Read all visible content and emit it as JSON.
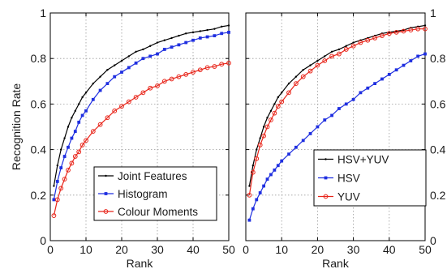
{
  "chart_data": [
    {
      "type": "line",
      "title": "",
      "xlabel": "Rank",
      "ylabel": "Recognition Rate",
      "xlim": [
        0,
        50
      ],
      "ylim": [
        0,
        1
      ],
      "xticks": [
        0,
        10,
        20,
        30,
        40,
        50
      ],
      "yticks": [
        0,
        0.2,
        0.4,
        0.6,
        0.8,
        1
      ],
      "xtick_labels": [
        "0",
        "10",
        "20",
        "30",
        "40",
        "50"
      ],
      "ytick_labels": [
        "0",
        "0.2",
        "0.4",
        "0.6",
        "0.8",
        "1"
      ],
      "ytick_side": "left",
      "grid": true,
      "legend": "bottom-right",
      "x": [
        1,
        2,
        3,
        4,
        5,
        6,
        7,
        8,
        9,
        10,
        12,
        14,
        16,
        18,
        20,
        22,
        24,
        26,
        28,
        30,
        32,
        34,
        36,
        38,
        40,
        42,
        44,
        46,
        48,
        50
      ],
      "series": [
        {
          "name": "Joint Features",
          "color": "#000000",
          "marker": "dot",
          "values": [
            0.24,
            0.33,
            0.4,
            0.45,
            0.5,
            0.54,
            0.57,
            0.6,
            0.63,
            0.65,
            0.69,
            0.72,
            0.75,
            0.77,
            0.79,
            0.81,
            0.83,
            0.84,
            0.855,
            0.87,
            0.88,
            0.89,
            0.9,
            0.91,
            0.915,
            0.92,
            0.925,
            0.93,
            0.94,
            0.945
          ]
        },
        {
          "name": "Histogram",
          "color": "#1f2fe0",
          "marker": "square",
          "values": [
            0.18,
            0.26,
            0.32,
            0.37,
            0.41,
            0.45,
            0.48,
            0.52,
            0.55,
            0.57,
            0.62,
            0.66,
            0.69,
            0.72,
            0.74,
            0.76,
            0.78,
            0.8,
            0.81,
            0.82,
            0.84,
            0.85,
            0.86,
            0.87,
            0.88,
            0.89,
            0.895,
            0.9,
            0.91,
            0.915
          ]
        },
        {
          "name": "Colour Moments",
          "color": "#e8251a",
          "marker": "circle",
          "values": [
            0.11,
            0.18,
            0.23,
            0.27,
            0.31,
            0.34,
            0.37,
            0.39,
            0.42,
            0.44,
            0.48,
            0.51,
            0.54,
            0.57,
            0.59,
            0.61,
            0.63,
            0.65,
            0.67,
            0.68,
            0.7,
            0.71,
            0.72,
            0.73,
            0.74,
            0.75,
            0.76,
            0.765,
            0.775,
            0.78
          ]
        }
      ]
    },
    {
      "type": "line",
      "title": "",
      "xlabel": "Rank",
      "ylabel": "",
      "xlim": [
        0,
        50
      ],
      "ylim": [
        0,
        1
      ],
      "xticks": [
        0,
        10,
        20,
        30,
        40,
        50
      ],
      "yticks": [
        0,
        0.2,
        0.4,
        0.6,
        0.8,
        1
      ],
      "xtick_labels": [
        "0",
        "10",
        "20",
        "30",
        "40",
        "50"
      ],
      "ytick_labels": [
        "0",
        "0.2",
        "0.4",
        "0.6",
        "0.8",
        "1"
      ],
      "ytick_side": "right",
      "grid": true,
      "legend": "right",
      "x": [
        1,
        2,
        3,
        4,
        5,
        6,
        7,
        8,
        9,
        10,
        12,
        14,
        16,
        18,
        20,
        22,
        24,
        26,
        28,
        30,
        32,
        34,
        36,
        38,
        40,
        42,
        44,
        46,
        48,
        50
      ],
      "series": [
        {
          "name": "HSV+YUV",
          "color": "#000000",
          "marker": "dot",
          "values": [
            0.24,
            0.33,
            0.4,
            0.45,
            0.5,
            0.54,
            0.57,
            0.6,
            0.63,
            0.65,
            0.69,
            0.72,
            0.75,
            0.77,
            0.79,
            0.81,
            0.83,
            0.84,
            0.855,
            0.87,
            0.88,
            0.89,
            0.9,
            0.91,
            0.915,
            0.92,
            0.925,
            0.935,
            0.94,
            0.945
          ]
        },
        {
          "name": "HSV",
          "color": "#1f2fe0",
          "marker": "square",
          "values": [
            0.09,
            0.14,
            0.18,
            0.21,
            0.24,
            0.27,
            0.29,
            0.31,
            0.33,
            0.35,
            0.38,
            0.41,
            0.44,
            0.47,
            0.5,
            0.53,
            0.55,
            0.58,
            0.6,
            0.62,
            0.65,
            0.67,
            0.69,
            0.71,
            0.73,
            0.75,
            0.77,
            0.79,
            0.81,
            0.82
          ]
        },
        {
          "name": "YUV",
          "color": "#e8251a",
          "marker": "circle",
          "values": [
            0.2,
            0.3,
            0.36,
            0.42,
            0.46,
            0.5,
            0.53,
            0.56,
            0.59,
            0.61,
            0.65,
            0.69,
            0.72,
            0.745,
            0.77,
            0.79,
            0.81,
            0.82,
            0.84,
            0.855,
            0.87,
            0.88,
            0.89,
            0.9,
            0.91,
            0.915,
            0.92,
            0.925,
            0.93,
            0.93
          ]
        }
      ]
    }
  ]
}
